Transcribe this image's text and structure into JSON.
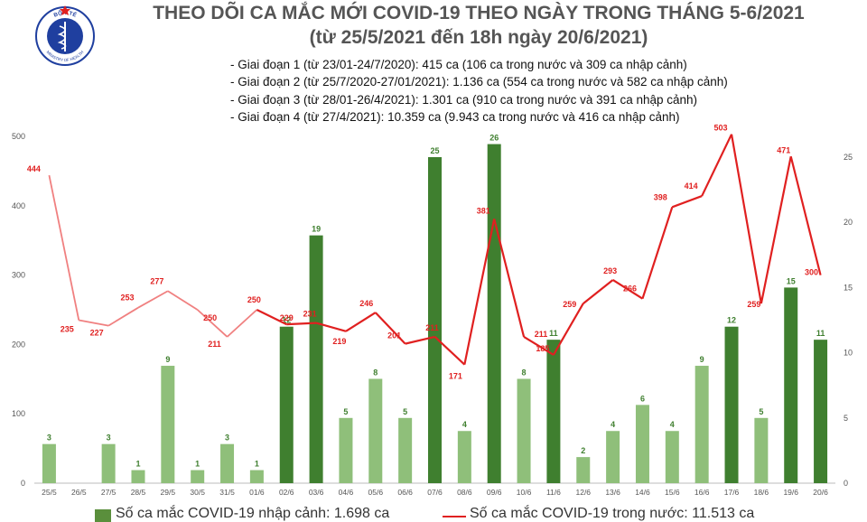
{
  "header": {
    "ministry_top": "BỘ Y TẾ",
    "ministry_bottom": "MINISTRY OF HEALTH",
    "title_line1": "THEO DÕI CA MẮC MỚI COVID-19 THEO NGÀY TRONG THÁNG 5-6/2021",
    "title_line2": "(từ 25/5/2021 đến 18h ngày 20/6/2021)"
  },
  "notes": [
    "- Giai đoạn 1 (từ 23/01-24/7/2020): 415 ca (106 ca trong nước và 309 ca nhập cảnh)",
    "- Giai đoạn 2 (từ 25/7/2020-27/01/2021): 1.136 ca (554 ca trong nước và 582 ca nhập cảnh)",
    "- Giai đoạn 3 (từ 28/01-26/4/2021): 1.301 ca (910 ca trong nước và 391 ca nhập cảnh)",
    "- Giai đoạn 4 (từ 27/4/2021): 10.359 ca (9.943 ca trong nước và 416 ca nhập cảnh)"
  ],
  "legend": {
    "bar_label": "Số ca mắc COVID-19 nhập cảnh: 1.698 ca",
    "line_label": "Số ca mắc COVID-19 trong nước: 11.513 ca"
  },
  "colors": {
    "bar_dark": "#3f7f2f",
    "bar_light": "#8fbf7a",
    "line": "#e02020",
    "logo_blue": "#1f3f9f"
  },
  "chart_data": {
    "type": "bar+line",
    "categories": [
      "25/5",
      "26/5",
      "27/5",
      "28/5",
      "29/5",
      "30/5",
      "31/5",
      "01/6",
      "02/6",
      "03/6",
      "04/6",
      "05/6",
      "06/6",
      "07/6",
      "08/6",
      "09/6",
      "10/6",
      "11/6",
      "12/6",
      "13/6",
      "14/6",
      "15/6",
      "16/6",
      "17/6",
      "18/6",
      "19/6",
      "20/6"
    ],
    "series": [
      {
        "name": "Số ca mắc COVID-19 nhập cảnh",
        "axis": "right",
        "values": [
          3,
          0,
          3,
          1,
          9,
          1,
          3,
          1,
          12,
          19,
          5,
          8,
          5,
          25,
          4,
          26,
          8,
          11,
          2,
          4,
          6,
          4,
          9,
          12,
          5,
          15,
          11
        ],
        "labels": [
          "3",
          "",
          "3",
          "1",
          "9",
          "1",
          "3",
          "1",
          "12",
          "19",
          "5",
          "8",
          "5",
          "25",
          "4",
          "26",
          "8",
          "11",
          "2",
          "4",
          "6",
          "4",
          "9",
          "12",
          "5",
          "15",
          "11"
        ]
      },
      {
        "name": "Số ca mắc COVID-19 trong nước",
        "axis": "left",
        "values": [
          444,
          235,
          227,
          253,
          277,
          250,
          211,
          250,
          229,
          231,
          219,
          246,
          201,
          211,
          171,
          381,
          211,
          185,
          259,
          293,
          266,
          398,
          414,
          503,
          259,
          471,
          300
        ]
      }
    ],
    "y_left": {
      "min": 0,
      "max": 500,
      "ticks": [
        0,
        100,
        200,
        300,
        400,
        500
      ]
    },
    "y_right": {
      "min": 0,
      "max": 25,
      "ticks": [
        0,
        5,
        10,
        15,
        20,
        25
      ]
    }
  }
}
